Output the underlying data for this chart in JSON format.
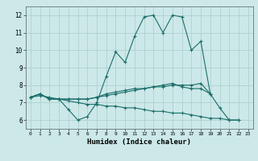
{
  "xlabel": "Humidex (Indice chaleur)",
  "bg_color": "#cce8e8",
  "grid_color": "#aacccc",
  "line_color": "#1a6e6a",
  "marker": "+",
  "xlim": [
    -0.5,
    23.5
  ],
  "ylim": [
    5.5,
    12.5
  ],
  "yticks": [
    6,
    7,
    8,
    9,
    10,
    11,
    12
  ],
  "xticks": [
    0,
    1,
    2,
    3,
    4,
    5,
    6,
    7,
    8,
    9,
    10,
    11,
    12,
    13,
    14,
    15,
    16,
    17,
    18,
    19,
    20,
    21,
    22,
    23
  ],
  "lines": [
    [
      7.3,
      7.5,
      7.2,
      7.2,
      6.6,
      6.0,
      6.2,
      7.0,
      8.5,
      9.9,
      9.3,
      10.8,
      11.9,
      12.0,
      11.0,
      12.0,
      11.9,
      10.0,
      10.5,
      7.5,
      6.7,
      6.0,
      6.0,
      null
    ],
    [
      7.3,
      7.5,
      7.2,
      7.2,
      7.2,
      7.2,
      7.2,
      7.3,
      7.4,
      7.5,
      7.6,
      7.7,
      7.8,
      7.9,
      7.9,
      8.0,
      8.0,
      8.0,
      8.1,
      7.5,
      null,
      null,
      null,
      null
    ],
    [
      7.3,
      7.4,
      7.3,
      7.2,
      7.1,
      7.0,
      6.9,
      6.9,
      6.8,
      6.8,
      6.7,
      6.7,
      6.6,
      6.5,
      6.5,
      6.4,
      6.4,
      6.3,
      6.2,
      6.1,
      6.1,
      6.0,
      6.0,
      null
    ],
    [
      7.3,
      7.5,
      7.2,
      7.2,
      7.2,
      7.2,
      7.2,
      7.3,
      7.5,
      7.6,
      7.7,
      7.8,
      7.8,
      7.9,
      8.0,
      8.1,
      7.9,
      7.8,
      7.8,
      7.5,
      null,
      null,
      null,
      null
    ]
  ]
}
